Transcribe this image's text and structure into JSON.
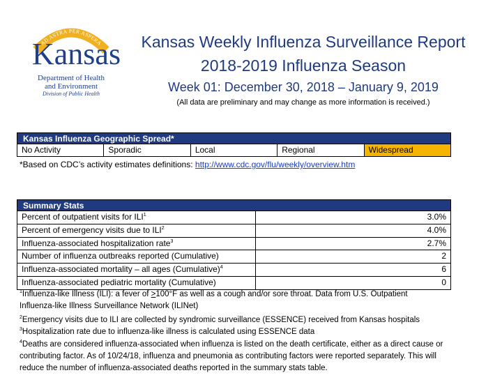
{
  "logo": {
    "arc_text": "AD ASTRA PER ASPERA",
    "word": "Kansas",
    "dept_line1": "Department of Health",
    "dept_line2": "and Environment",
    "division": "Division of Public Health"
  },
  "header": {
    "title": "Kansas Weekly Influenza Surveillance Report",
    "season": "2018-2019 Influenza Season",
    "week": "Week 01: December 30, 2018 – January 9, 2019",
    "note": "(All data are preliminary and may change as more information is received.)"
  },
  "geographic_spread": {
    "title": "Kansas Influenza Geographic Spread*",
    "levels": [
      "No Activity",
      "Sporadic",
      "Local",
      "Regional",
      "Widespread"
    ],
    "active_level": "Widespread",
    "active_color": "#f5b400",
    "note_prefix": "*Based on CDC’s activity estimates definitions: ",
    "note_link": "http://www.cdc.gov/flu/weekly/overview.htm"
  },
  "summary_stats": {
    "title": "Summary Stats",
    "rows": [
      {
        "label": "Percent of outpatient visits for ILI",
        "sup": "1",
        "value": "3.0%"
      },
      {
        "label": "Percent of emergency visits due to ILI",
        "sup": "2",
        "value": "4.0%"
      },
      {
        "label": "Influenza-associated hospitalization rate",
        "sup": "3",
        "value": "2.7%"
      },
      {
        "label": "Number of influenza outbreaks reported (Cumulative)",
        "sup": "",
        "value": "2"
      },
      {
        "label": "Influenza-associated mortality – all ages (Cumulative)",
        "sup": "4",
        "value": "6"
      },
      {
        "label": "Influenza-associated pediatric mortality (Cumulative)",
        "sup": "",
        "value": "0"
      }
    ]
  },
  "footnotes": {
    "f1_sup": "1",
    "f1_a": "Influenza-like Illness (ILI): a fever of ",
    "f1_ge": ">",
    "f1_b": "100°F as well as a cough and/or sore throat. Data from U.S. Outpatient Influenza-like Illness Surveillance Network (ILINet)",
    "f2_sup": "2",
    "f2": "Emergency visits due to ILI are collected by syndromic surveillance (ESSENCE) received from Kansas hospitals",
    "f3_sup": "3",
    "f3": "Hospitalization rate due to influenza-like illness is calculated using ESSENCE data",
    "f4_sup": "4",
    "f4": "Deaths are considered influenza-associated when influenza is listed on the death certificate, either as a direct cause or contributing factor. As of 10/24/18, influenza and pneumonia as contributing factors were reported separately. This will reduce the number of influenza-associated deaths reported in the summary stats table."
  },
  "colors": {
    "navy": "#1f3a80",
    "gold": "#f0b020"
  }
}
